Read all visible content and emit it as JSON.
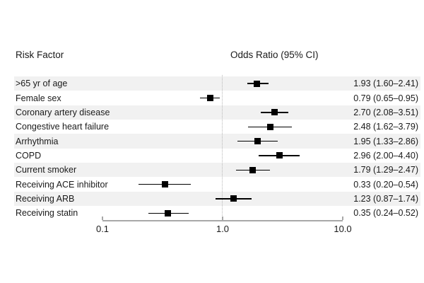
{
  "header": {
    "left": "Risk Factor",
    "right": "Odds Ratio (95% CI)"
  },
  "chart_data": {
    "type": "forest",
    "title": "",
    "xlabel": "",
    "xscale": "log",
    "xlim": [
      0.1,
      10.0
    ],
    "reference_line": 1.0,
    "legend": null,
    "x_ticks": [
      {
        "label": "0.1",
        "value": 0.1
      },
      {
        "label": "1.0",
        "value": 1.0
      },
      {
        "label": "10.0",
        "value": 10.0
      }
    ],
    "rows": [
      {
        "label": ">65 yr of age",
        "or": 1.93,
        "ci_low": 1.6,
        "ci_high": 2.41,
        "display": "1.93 (1.60–2.41)"
      },
      {
        "label": "Female sex",
        "or": 0.79,
        "ci_low": 0.65,
        "ci_high": 0.95,
        "display": "0.79 (0.65–0.95)"
      },
      {
        "label": "Coronary artery disease",
        "or": 2.7,
        "ci_low": 2.08,
        "ci_high": 3.51,
        "display": "2.70 (2.08–3.51)"
      },
      {
        "label": "Congestive heart failure",
        "or": 2.48,
        "ci_low": 1.62,
        "ci_high": 3.79,
        "display": "2.48 (1.62–3.79)"
      },
      {
        "label": "Arrhythmia",
        "or": 1.95,
        "ci_low": 1.33,
        "ci_high": 2.86,
        "display": "1.95 (1.33–2.86)"
      },
      {
        "label": "COPD",
        "or": 2.96,
        "ci_low": 2.0,
        "ci_high": 4.4,
        "display": "2.96 (2.00–4.40)"
      },
      {
        "label": "Current smoker",
        "or": 1.79,
        "ci_low": 1.29,
        "ci_high": 2.47,
        "display": "1.79 (1.29–2.47)"
      },
      {
        "label": "Receiving ACE inhibitor",
        "or": 0.33,
        "ci_low": 0.2,
        "ci_high": 0.54,
        "display": "0.33 (0.20–0.54)"
      },
      {
        "label": "Receiving ARB",
        "or": 1.23,
        "ci_low": 0.87,
        "ci_high": 1.74,
        "display": "1.23 (0.87–1.74)"
      },
      {
        "label": "Receiving statin",
        "or": 0.35,
        "ci_low": 0.24,
        "ci_high": 0.52,
        "display": "0.35 (0.24–0.52)"
      }
    ]
  },
  "colors": {
    "stripe": "#f1f1f1",
    "marker": "#000000",
    "ci_line": "#000000",
    "axis": "#a8a8a8",
    "reference_line": "#b8b8b8",
    "text": "#1a1a1a"
  }
}
